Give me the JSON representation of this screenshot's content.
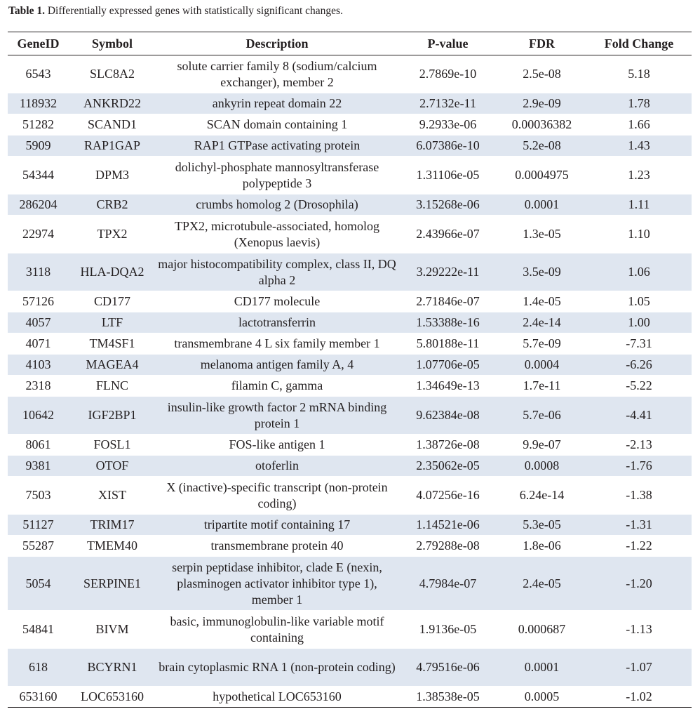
{
  "caption": {
    "label": "Table 1.",
    "text": " Differentially expressed genes with statistically significant changes."
  },
  "table": {
    "headers": [
      "GeneID",
      "Symbol",
      "Description",
      "P-value",
      "FDR",
      "Fold Change"
    ],
    "rows": [
      [
        "6543",
        "SLC8A2",
        "solute carrier family 8 (sodium/calcium exchanger), member 2",
        "2.7869e-10",
        "2.5e-08",
        "5.18"
      ],
      [
        "118932",
        "ANKRD22",
        "ankyrin repeat domain 22",
        "2.7132e-11",
        "2.9e-09",
        "1.78"
      ],
      [
        "51282",
        "SCAND1",
        "SCAN domain containing 1",
        "9.2933e-06",
        "0.00036382",
        "1.66"
      ],
      [
        "5909",
        "RAP1GAP",
        "RAP1 GTPase activating protein",
        "6.07386e-10",
        "5.2e-08",
        "1.43"
      ],
      [
        "54344",
        "DPM3",
        "dolichyl-phosphate mannosyltransferase polypeptide 3",
        "1.31106e-05",
        "0.0004975",
        "1.23"
      ],
      [
        "286204",
        "CRB2",
        "crumbs homolog 2 (Drosophila)",
        "3.15268e-06",
        "0.0001",
        "1.11"
      ],
      [
        "22974",
        "TPX2",
        "TPX2, microtubule-associated, homolog (Xenopus laevis)",
        "2.43966e-07",
        "1.3e-05",
        "1.10"
      ],
      [
        "3118",
        "HLA-DQA2",
        "major histocompatibility complex, class II, DQ alpha 2",
        "3.29222e-11",
        "3.5e-09",
        "1.06"
      ],
      [
        "57126",
        "CD177",
        "CD177 molecule",
        "2.71846e-07",
        "1.4e-05",
        "1.05"
      ],
      [
        "4057",
        "LTF",
        "lactotransferrin",
        "1.53388e-16",
        "2.4e-14",
        "1.00"
      ],
      [
        "4071",
        "TM4SF1",
        "transmembrane 4 L six family member 1",
        "5.80188e-11",
        "5.7e-09",
        "-7.31"
      ],
      [
        "4103",
        "MAGEA4",
        "melanoma antigen family A, 4",
        "1.07706e-05",
        "0.0004",
        "-6.26"
      ],
      [
        "2318",
        "FLNC",
        "filamin C, gamma",
        "1.34649e-13",
        "1.7e-11",
        "-5.22"
      ],
      [
        "10642",
        "IGF2BP1",
        "insulin-like growth factor 2 mRNA binding protein 1",
        "9.62384e-08",
        "5.7e-06",
        "-4.41"
      ],
      [
        "8061",
        "FOSL1",
        "FOS-like antigen 1",
        "1.38726e-08",
        "9.9e-07",
        "-2.13"
      ],
      [
        "9381",
        "OTOF",
        "otoferlin",
        "2.35062e-05",
        "0.0008",
        "-1.76"
      ],
      [
        "7503",
        "XIST",
        "X (inactive)-specific transcript (non-protein coding)",
        "4.07256e-16",
        "6.24e-14",
        "-1.38"
      ],
      [
        "51127",
        "TRIM17",
        "tripartite motif containing 17",
        "1.14521e-06",
        "5.3e-05",
        "-1.31"
      ],
      [
        "55287",
        "TMEM40",
        "transmembrane protein 40",
        "2.79288e-08",
        "1.8e-06",
        "-1.22"
      ],
      [
        "5054",
        "SERPINE1",
        "serpin peptidase inhibitor, clade E (nexin, plasminogen activator inhibitor type 1), member 1",
        "4.7984e-07",
        "2.4e-05",
        "-1.20"
      ],
      [
        "54841",
        "BIVM",
        "basic, immunoglobulin-like variable motif containing",
        "1.9136e-05",
        "0.000687",
        "-1.13"
      ],
      [
        "618",
        "BCYRN1",
        "brain cytoplasmic RNA 1 (non-protein coding)",
        "4.79516e-06",
        "0.0001",
        "-1.07"
      ],
      [
        "653160",
        "LOC653160",
        "hypothetical LOC653160",
        "1.38538e-05",
        "0.0005",
        "-1.02"
      ]
    ]
  }
}
